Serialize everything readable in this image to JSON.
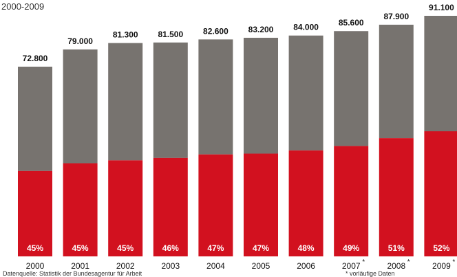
{
  "subtitle": "2000-2009",
  "source_note": "Datenquelle: Statistik der Bundesagentur für Arbeit",
  "footnote": "* vorläufige Daten",
  "colors": {
    "top_segment": "#77736f",
    "bottom_segment": "#d2111f",
    "share_label": "#ffffff",
    "text": "#111111"
  },
  "chart_data": {
    "type": "bar",
    "stacked": true,
    "categories": [
      "2000",
      "2001",
      "2002",
      "2003",
      "2004",
      "2005",
      "2006",
      "2007",
      "2008",
      "2009"
    ],
    "category_marks": [
      "",
      "",
      "",
      "",
      "",
      "",
      "",
      "*",
      "*",
      "*"
    ],
    "totals": [
      72800,
      79000,
      81300,
      81500,
      82600,
      83200,
      84000,
      85600,
      87900,
      91100
    ],
    "total_labels": [
      "72.800",
      "79.000",
      "81.300",
      "81.500",
      "82.600",
      "83.200",
      "84.000",
      "85.600",
      "87.900",
      "91.100"
    ],
    "shares_percent": [
      45,
      45,
      45,
      46,
      47,
      47,
      48,
      49,
      51,
      52
    ],
    "share_labels": [
      "45%",
      "45%",
      "45%",
      "46%",
      "47%",
      "47%",
      "48%",
      "49%",
      "51%",
      "52%"
    ],
    "grid": false,
    "legend": "none"
  }
}
